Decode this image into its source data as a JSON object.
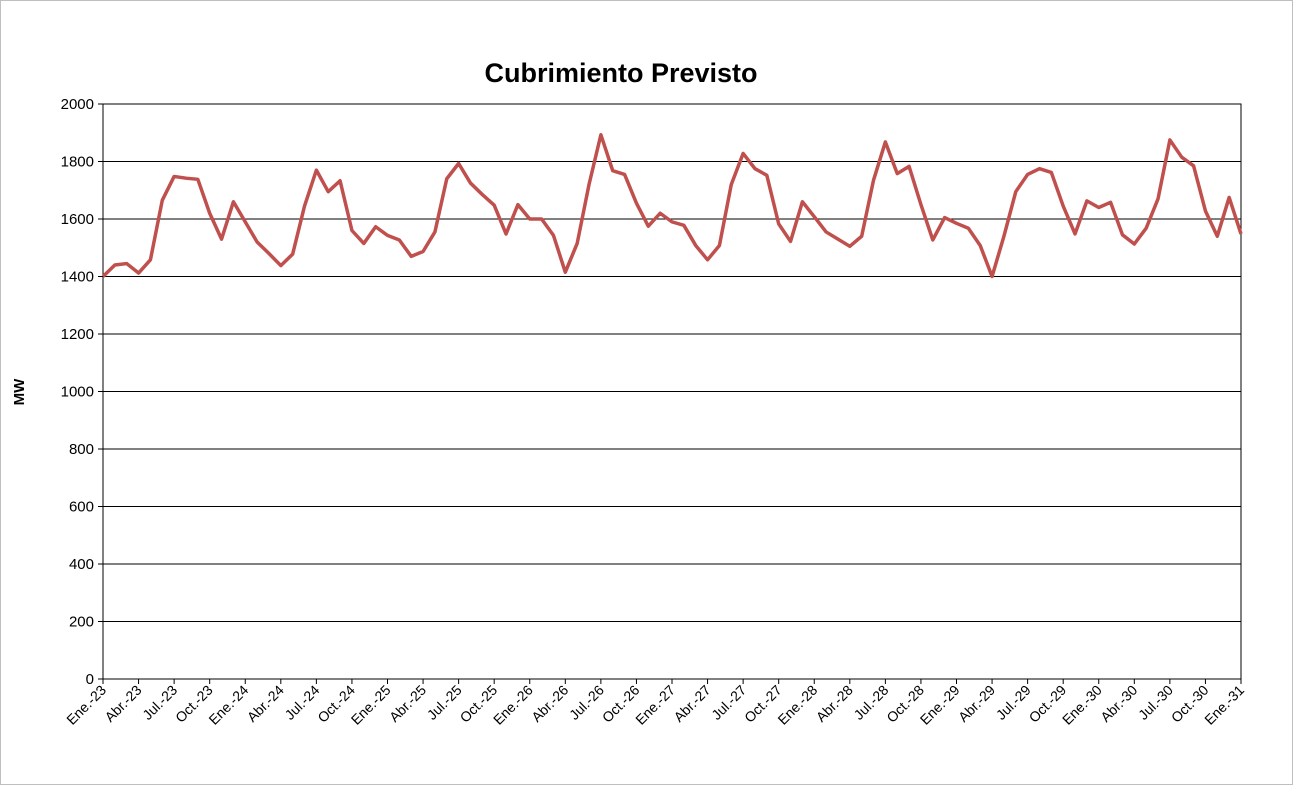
{
  "chart_data": {
    "type": "line",
    "title": "Cubrimiento Previsto",
    "y_label": "MW",
    "categories": [
      "Ene.-23",
      null,
      null,
      "Abr.-23",
      null,
      null,
      "Jul.-23",
      null,
      null,
      "Oct.-23",
      null,
      null,
      "Ene.-24",
      null,
      null,
      "Abr.-24",
      null,
      null,
      "Jul.-24",
      null,
      null,
      "Oct.-24",
      null,
      null,
      "Ene.-25",
      null,
      null,
      "Abr.-25",
      null,
      null,
      "Jul.-25",
      null,
      null,
      "Oct.-25",
      null,
      null,
      "Ene.-26",
      null,
      null,
      "Abr.-26",
      null,
      null,
      "Jul.-26",
      null,
      null,
      "Oct.-26",
      null,
      null,
      "Ene.-27",
      null,
      null,
      "Abr.-27",
      null,
      null,
      "Jul.-27",
      null,
      null,
      "Oct.-27",
      null,
      null,
      "Ene.-28",
      null,
      null,
      "Abr.-28",
      null,
      null,
      "Jul.-28",
      null,
      null,
      "Oct.-28",
      null,
      null,
      "Ene.-29",
      null,
      null,
      "Abr.-29",
      null,
      null,
      "Jul.-29",
      null,
      null,
      "Oct.-29",
      null,
      null,
      "Ene.-30",
      null,
      null,
      "Abr.-30",
      null,
      null,
      "Jul.-30",
      null,
      null,
      "Oct.-30",
      null,
      null,
      "Ene.-31"
    ],
    "values": [
      1400,
      1440,
      1445,
      1412,
      1458,
      1665,
      1748,
      1742,
      1738,
      1620,
      1530,
      1660,
      1590,
      1520,
      1480,
      1438,
      1478,
      1645,
      1770,
      1695,
      1733,
      1560,
      1515,
      1573,
      1543,
      1527,
      1470,
      1487,
      1555,
      1740,
      1793,
      1725,
      1685,
      1648,
      1548,
      1650,
      1600,
      1600,
      1543,
      1415,
      1515,
      1720,
      1893,
      1768,
      1755,
      1655,
      1575,
      1620,
      1590,
      1578,
      1508,
      1458,
      1508,
      1720,
      1828,
      1775,
      1752,
      1583,
      1522,
      1660,
      1608,
      1555,
      1530,
      1505,
      1540,
      1735,
      1868,
      1758,
      1783,
      1650,
      1527,
      1605,
      1585,
      1568,
      1508,
      1400,
      1540,
      1695,
      1755,
      1775,
      1762,
      1645,
      1548,
      1663,
      1640,
      1658,
      1545,
      1513,
      1568,
      1670,
      1875,
      1815,
      1785,
      1628,
      1540,
      1675,
      1548
    ],
    "color": "#c0504d",
    "ylim": [
      0,
      2000
    ],
    "yticks": [
      0,
      200,
      400,
      600,
      800,
      1000,
      1200,
      1400,
      1600,
      1800,
      2000
    ],
    "grid": true
  }
}
